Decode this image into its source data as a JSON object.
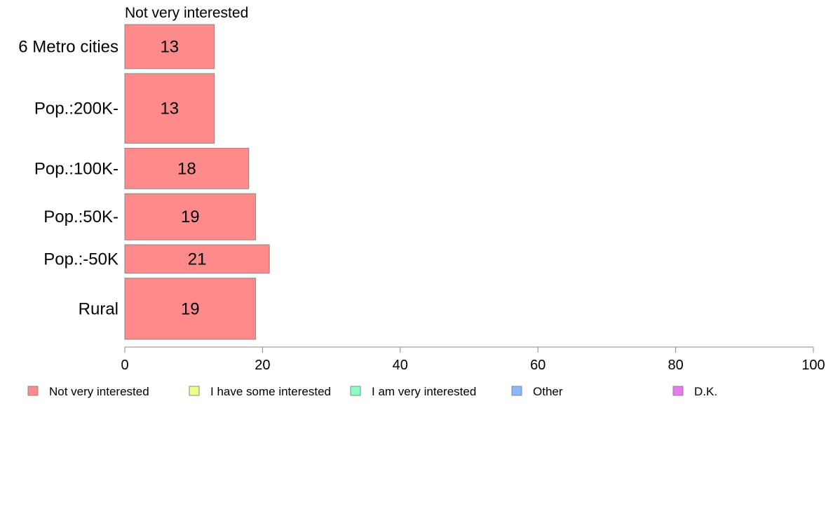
{
  "chart_data": {
    "type": "bar",
    "orientation": "horizontal",
    "panel_title": "Not very interested",
    "categories": [
      "6 Metro cities",
      "Pop.:200K-",
      "Pop.:100K-",
      "Pop.:50K-",
      "Pop.:-50K",
      "Rural"
    ],
    "category_weights": [
      0.62,
      0.98,
      0.57,
      0.65,
      0.4,
      0.86
    ],
    "series": [
      {
        "name": "Not very interested",
        "values": [
          13,
          13,
          18,
          19,
          21,
          19
        ],
        "color": "#ff8a8a"
      }
    ],
    "value_labels": [
      "13",
      "13",
      "18",
      "19",
      "21",
      "19"
    ],
    "xlim": [
      0,
      100
    ],
    "xticks": [
      0,
      20,
      40,
      60,
      80,
      100
    ],
    "xtick_labels": [
      "0",
      "20",
      "40",
      "60",
      "80",
      "100"
    ],
    "grid": false,
    "legend": {
      "placement": "bottom",
      "items": [
        {
          "label": "Not very interested",
          "color": "#ff8a8a"
        },
        {
          "label": "I have some interested",
          "color": "#f0ff8a"
        },
        {
          "label": "I am very interested",
          "color": "#8affc0"
        },
        {
          "label": "Other",
          "color": "#8ab8ff"
        },
        {
          "label": "D.K.",
          "color": "#e87af0"
        }
      ]
    },
    "bar_border_color": "#888888",
    "axis_color": "#888888"
  }
}
